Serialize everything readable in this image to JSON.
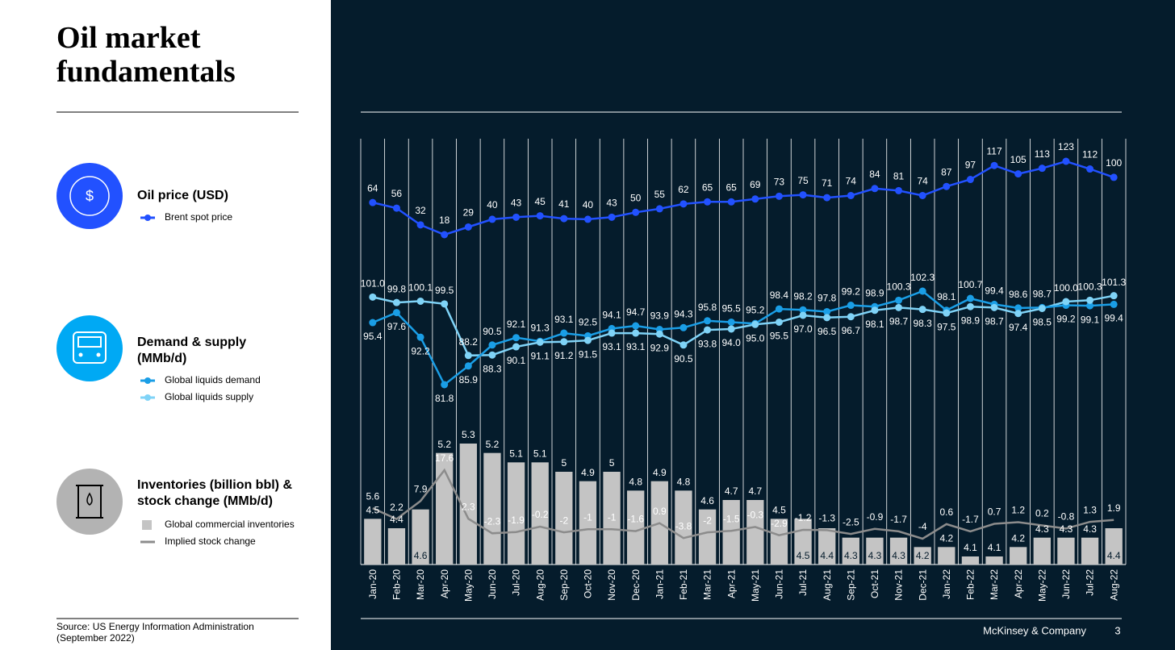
{
  "page": {
    "title": "Oil market fundamentals",
    "sections": [
      {
        "heading": "Oil price (USD)"
      },
      {
        "heading": "Demand & supply (MMb/d)"
      },
      {
        "heading": "Inventories (billion bbl) & stock change (MMb/d)"
      }
    ],
    "source": "Source: US Energy Information Administration (September 2022)",
    "footer": "McKinsey & Company",
    "page_number": "3"
  },
  "chart_data": {
    "type": "combo",
    "categories": [
      "Jan-20",
      "Feb-20",
      "Mar-20",
      "Apr-20",
      "May-20",
      "Jun-20",
      "Jul-20",
      "Aug-20",
      "Sep-20",
      "Oct-20",
      "Nov-20",
      "Dec-20",
      "Jan-21",
      "Feb-21",
      "Mar-21",
      "Apr-21",
      "May-21",
      "Jun-21",
      "Jul-21",
      "Aug-21",
      "Sep-21",
      "Oct-21",
      "Nov-21",
      "Dec-21",
      "Jan-22",
      "Feb-22",
      "Mar-22",
      "Apr-22",
      "May-22",
      "Jun-22",
      "Jul-22",
      "Aug-22"
    ],
    "series": [
      {
        "name": "Brent spot price",
        "type": "line",
        "color": "#2251ff",
        "values": [
          64,
          56,
          32,
          18,
          29,
          40,
          43,
          45,
          41,
          40,
          43,
          50,
          55,
          62,
          65,
          65,
          69,
          73,
          75,
          71,
          74,
          84,
          81,
          74,
          87,
          97,
          117,
          105,
          113,
          123,
          112,
          100
        ]
      },
      {
        "name": "Global liquids demand",
        "type": "line",
        "color": "#1a9ee6",
        "values": [
          95.4,
          97.6,
          92.2,
          81.8,
          85.9,
          90.5,
          92.1,
          91.3,
          93.1,
          92.5,
          94.1,
          94.7,
          93.9,
          94.3,
          95.8,
          95.5,
          95.2,
          98.4,
          98.2,
          97.8,
          99.2,
          98.9,
          100.3,
          102.3,
          98.1,
          100.7,
          99.4,
          98.6,
          98.7,
          99.2,
          99.1,
          99.4
        ]
      },
      {
        "name": "Global liquids supply",
        "type": "line",
        "color": "#7fd3f7",
        "values": [
          101,
          99.8,
          100.1,
          99.5,
          88.2,
          88.3,
          90.1,
          91.1,
          91.2,
          91.5,
          93.1,
          93.1,
          92.9,
          90.5,
          93.8,
          94,
          95,
          95.5,
          97,
          96.5,
          96.7,
          98.1,
          98.7,
          98.3,
          97.5,
          98.9,
          98.7,
          97.4,
          98.5,
          100,
          100.3,
          101.3
        ],
        "value_labels": [
          "101.0",
          "99.8",
          "100.1",
          "99.5",
          "88.2",
          "88.3",
          "90.1",
          "91.1",
          "91.2",
          "91.5",
          "93.1",
          "93.1",
          "92.9",
          "90.5",
          "93.8",
          "94.0",
          "95.0",
          "95.5",
          "97.0",
          "96.5",
          "96.7",
          "98.1",
          "98.7",
          "98.3",
          "97.5",
          "98.9",
          "98.7",
          "97.4",
          "98.5",
          "100.0",
          "100.3",
          "101.3"
        ]
      },
      {
        "name": "Global commercial inventories",
        "type": "bar",
        "color": "#c4c4c4",
        "values": [
          4.5,
          4.4,
          4.6,
          5.2,
          5.3,
          5.2,
          5.1,
          5.1,
          5.0,
          4.9,
          5.0,
          4.8,
          4.9,
          4.8,
          4.6,
          4.7,
          4.7,
          4.5,
          4.5,
          4.4,
          4.3,
          4.3,
          4.3,
          4.2,
          4.2,
          4.1,
          4.1,
          4.2,
          4.3,
          4.3,
          4.3,
          4.4
        ]
      },
      {
        "name": "Implied stock change",
        "type": "line",
        "color": "#8c8c8c",
        "values": [
          5.6,
          2.2,
          7.9,
          17.6,
          2.3,
          -2.3,
          -1.9,
          -0.2,
          -2.0,
          -1.0,
          -1.0,
          -1.6,
          0.9,
          -3.8,
          -2.0,
          -1.5,
          -0.3,
          -2.9,
          -1.2,
          -1.3,
          -2.5,
          -0.9,
          -1.7,
          -4.0,
          0.6,
          -1.7,
          0.7,
          1.2,
          0.2,
          -0.8,
          1.3,
          1.9
        ]
      }
    ]
  }
}
